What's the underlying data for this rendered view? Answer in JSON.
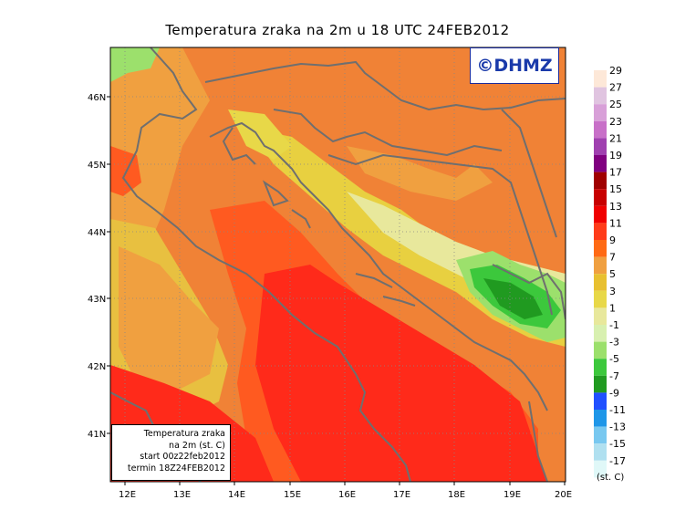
{
  "title": "Temperatura zraka na 2m u 18 UTC 24FEB2012",
  "logo": "©DHMZ",
  "info": {
    "line1": "Temperatura zraka",
    "line2": "na 2m (st. C)",
    "line3": "start 00z22feb2012",
    "line4": "termin 18Z24FEB2012"
  },
  "axes": {
    "lat_labels": [
      "46N",
      "45N",
      "44N",
      "43N",
      "42N",
      "41N"
    ],
    "lon_labels": [
      "12E",
      "13E",
      "14E",
      "15E",
      "16E",
      "17E",
      "18E",
      "19E",
      "20E"
    ]
  },
  "legend": {
    "unit": "(st. C)",
    "labels": [
      "29",
      "27",
      "25",
      "23",
      "21",
      "19",
      "17",
      "15",
      "13",
      "11",
      "9",
      "7",
      "5",
      "3",
      "1",
      "-1",
      "-3",
      "-5",
      "-7",
      "-9",
      "-11",
      "-13",
      "-15",
      "-17"
    ],
    "colors": [
      "#fde8d8",
      "#e0c4e0",
      "#d8a0d8",
      "#c870c8",
      "#a040b0",
      "#800080",
      "#a00000",
      "#c80000",
      "#f00000",
      "#ff3c1a",
      "#ff6a14",
      "#f0a040",
      "#e8c030",
      "#e8d848",
      "#e8e89c",
      "#d8f0b0",
      "#9ce06c",
      "#3cc83c",
      "#209a20",
      "#2050ff",
      "#1e96e8",
      "#78c8f0",
      "#b0e0f0",
      "#e0f8f8"
    ]
  },
  "colors": {
    "sea_warm": "#ff2a1a",
    "coast_orange": "#f07a30",
    "inland_yellow": "#e8d040",
    "mountain_green": "#3cc83c",
    "border_gray": "#6f6f6f"
  }
}
